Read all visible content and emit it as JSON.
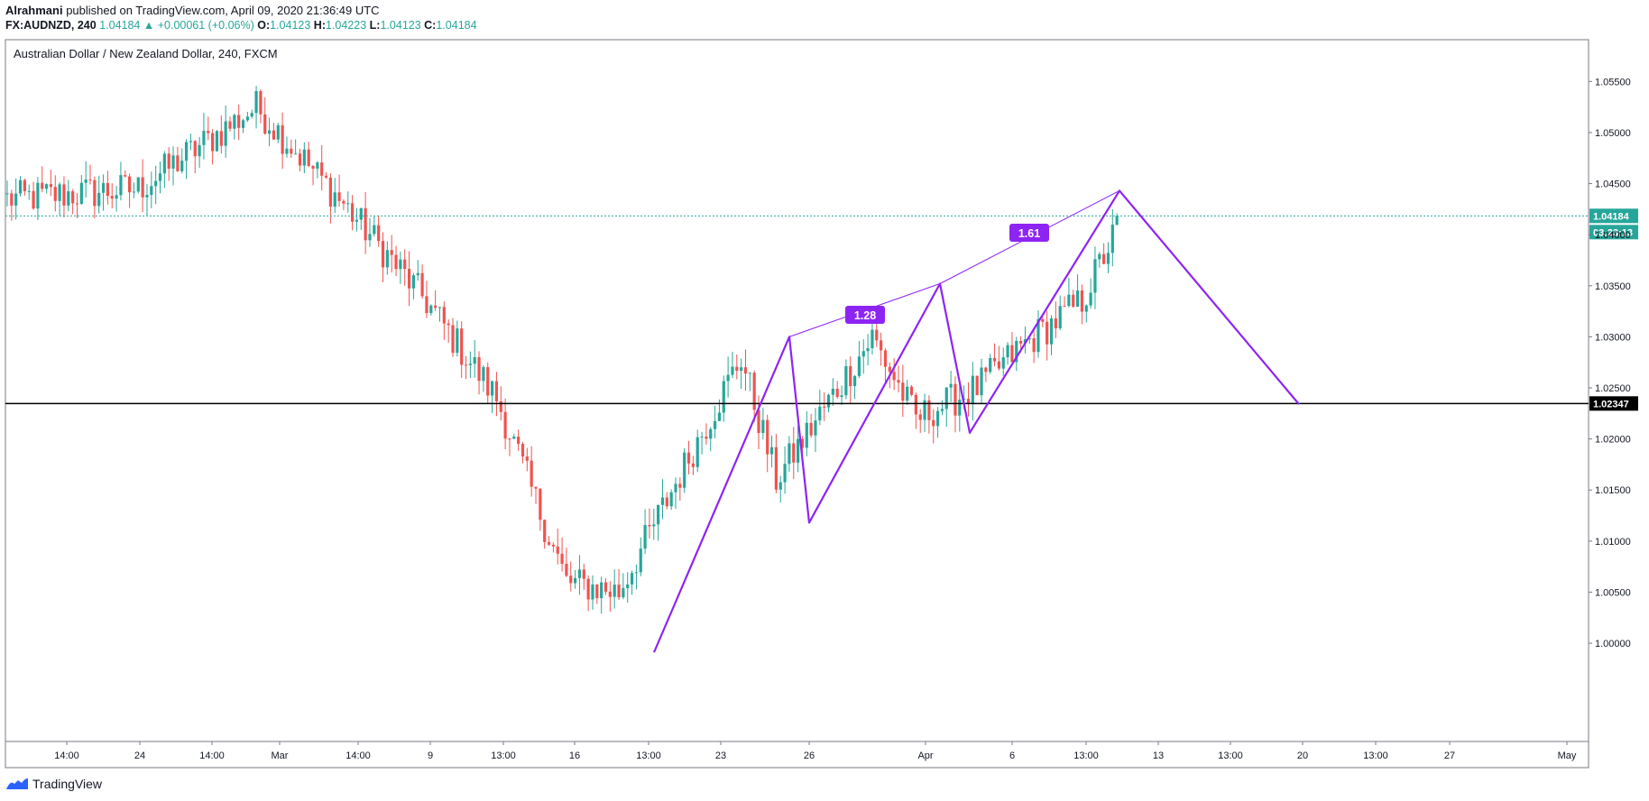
{
  "header": {
    "author": "Alrahmani",
    "publish_text": "published on TradingView.com, April 09, 2020 21:36:49 UTC",
    "symbol": "FX:AUDNZD, 240",
    "last": "1.04184",
    "change": "▲ +0.00061 (+0.06%)",
    "o_label": "O:",
    "o": "1.04123",
    "h_label": "H:",
    "h": "1.04223",
    "l_label": "L:",
    "l": "1.04123",
    "c_label": "C:",
    "c": "1.04184"
  },
  "footer": {
    "brand": "TradingView"
  },
  "colors": {
    "up": "#26a69a",
    "down": "#ef5350",
    "pattern": "#8e24f3",
    "price_line": "#26a69a",
    "hline": "#000000"
  },
  "chart_data": {
    "type": "candlestick",
    "title": "Australian Dollar / New Zealand Dollar, 240, FXCM",
    "ylim": [
      0.994,
      1.0575
    ],
    "y_ticks": [
      "1.05500",
      "1.05000",
      "1.04500",
      "1.04000",
      "1.03500",
      "1.03000",
      "1.02500",
      "1.02000",
      "1.01500",
      "1.01000",
      "1.00500",
      "1.00000"
    ],
    "x_ticks": [
      "14:00",
      "24",
      "14:00",
      "Mar",
      "14:00",
      "9",
      "13:00",
      "16",
      "13:00",
      "23",
      "26",
      "Apr",
      "6",
      "13:00",
      "13",
      "13:00",
      "20",
      "13:00",
      "27",
      "May"
    ],
    "last_price": {
      "value": 1.04184,
      "label": "1.04184",
      "countdown": "03:23:13"
    },
    "horizontal_line": {
      "value": 1.02347,
      "label": "1.02347"
    },
    "pattern": {
      "points": [
        {
          "t": "Mar 19 13:00",
          "y": 0.9991
        },
        {
          "t": "Mar 25",
          "y": 1.03
        },
        {
          "t": "Mar 26",
          "y": 1.0118
        },
        {
          "t": "Apr 1",
          "y": 1.0352
        },
        {
          "t": "Apr 3",
          "y": 1.0206
        },
        {
          "t": "Apr 9",
          "y": 1.0443
        },
        {
          "t": "Apr 20",
          "y": 1.0234
        }
      ],
      "ratios": [
        "1.28",
        "1.61"
      ]
    },
    "candles_segments": [
      {
        "from": 1.0435,
        "to": 1.0445,
        "count": 30
      },
      {
        "from": 1.0445,
        "to": 1.0525,
        "count": 27
      },
      {
        "from": 1.0525,
        "to": 1.043,
        "count": 20
      },
      {
        "from": 1.043,
        "to": 1.034,
        "count": 18
      },
      {
        "from": 1.034,
        "to": 1.024,
        "count": 17
      },
      {
        "from": 1.024,
        "to": 1.006,
        "count": 16
      },
      {
        "from": 1.006,
        "to": 1.005,
        "count": 12
      },
      {
        "from": 1.005,
        "to": 1.028,
        "count": 28
      },
      {
        "from": 1.028,
        "to": 1.016,
        "count": 8
      },
      {
        "from": 1.016,
        "to": 1.03,
        "count": 22
      },
      {
        "from": 1.03,
        "to": 1.022,
        "count": 10
      },
      {
        "from": 1.022,
        "to": 1.025,
        "count": 14
      },
      {
        "from": 1.025,
        "to": 1.029,
        "count": 10
      },
      {
        "from": 1.029,
        "to": 1.0335,
        "count": 14
      },
      {
        "from": 1.0335,
        "to": 1.0415,
        "count": 9
      }
    ]
  }
}
